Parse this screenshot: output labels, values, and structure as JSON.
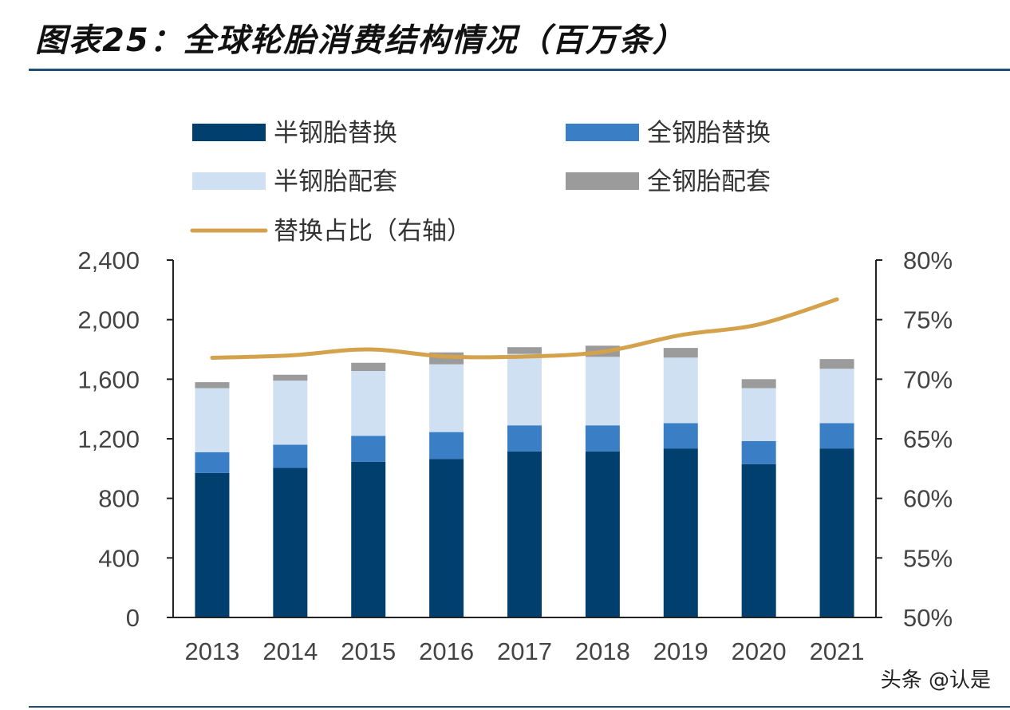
{
  "title": "图表25：全球轮胎消费结构情况（百万条）",
  "watermark": "头条 @认是",
  "colors": {
    "semi_replace": "#003f6e",
    "full_replace": "#3a7fc6",
    "semi_oe": "#cfe0f2",
    "full_oe": "#9b9b9b",
    "ratio_line": "#d4a24c",
    "rule": "#1f4e79"
  },
  "chart_data": {
    "type": "bar",
    "stacked": true,
    "categories": [
      "2013",
      "2014",
      "2015",
      "2016",
      "2017",
      "2018",
      "2019",
      "2020",
      "2021"
    ],
    "series": [
      {
        "name": "半钢胎替换",
        "color_key": "semi_replace",
        "values": [
          970,
          1005,
          1045,
          1065,
          1115,
          1115,
          1135,
          1030,
          1135
        ]
      },
      {
        "name": "全钢胎替换",
        "color_key": "full_replace",
        "values": [
          140,
          155,
          175,
          180,
          175,
          175,
          170,
          155,
          170
        ]
      },
      {
        "name": "半钢胎配套",
        "color_key": "semi_oe",
        "values": [
          430,
          430,
          435,
          455,
          480,
          460,
          440,
          355,
          365
        ]
      },
      {
        "name": "全钢胎配套",
        "color_key": "full_oe",
        "values": [
          40,
          40,
          55,
          80,
          45,
          75,
          65,
          60,
          65
        ]
      }
    ],
    "line_series": {
      "name": "替换占比（右轴）",
      "color_key": "ratio_line",
      "axis": "right",
      "values": [
        71.8,
        72.0,
        72.5,
        71.9,
        71.9,
        72.3,
        73.7,
        74.6,
        76.7
      ]
    },
    "y_left": {
      "min": 0,
      "max": 2400,
      "ticks": [
        0,
        400,
        800,
        1200,
        1600,
        2000,
        2400
      ],
      "tick_labels": [
        "0",
        "400",
        "800",
        "1,200",
        "1,600",
        "2,000",
        "2,400"
      ]
    },
    "y_right": {
      "min": 50,
      "max": 80,
      "ticks": [
        50,
        55,
        60,
        65,
        70,
        75,
        80
      ],
      "tick_labels": [
        "50%",
        "55%",
        "60%",
        "65%",
        "70%",
        "75%",
        "80%"
      ]
    },
    "legend": [
      {
        "label": "半钢胎替换",
        "color_key": "semi_replace",
        "kind": "box"
      },
      {
        "label": "全钢胎替换",
        "color_key": "full_replace",
        "kind": "box"
      },
      {
        "label": "半钢胎配套",
        "color_key": "semi_oe",
        "kind": "box"
      },
      {
        "label": "全钢胎配套",
        "color_key": "full_oe",
        "kind": "box"
      },
      {
        "label": "替换占比（右轴）",
        "color_key": "ratio_line",
        "kind": "line"
      }
    ]
  }
}
